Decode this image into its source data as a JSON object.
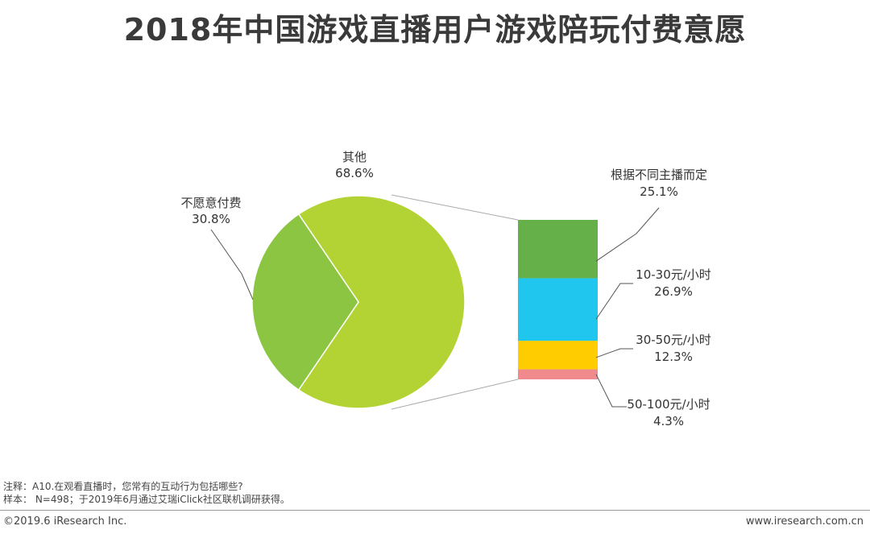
{
  "title": "2018年中国游戏直播用户游戏陪玩付费意愿",
  "chart_data": {
    "type": "pie",
    "pie": {
      "slices": [
        {
          "label": "其他",
          "value": 68.6,
          "value_label": "68.6%",
          "color": "#b3d334"
        },
        {
          "label": "不愿意付费",
          "value": 30.8,
          "value_label": "30.8%",
          "color": "#8bc541"
        }
      ]
    },
    "bar": {
      "type": "stacked-bar",
      "segments": [
        {
          "label": "根据不同主播而定",
          "value": 25.1,
          "value_label": "25.1%",
          "color": "#66b04a"
        },
        {
          "label": "10-30元/小时",
          "value": 26.9,
          "value_label": "26.9%",
          "color": "#20c6ee"
        },
        {
          "label": "30-50元/小时",
          "value": 12.3,
          "value_label": "12.3%",
          "color": "#ffcc00"
        },
        {
          "label": "50-100元/小时",
          "value": 4.3,
          "value_label": "4.3%",
          "color": "#f08a8c"
        }
      ]
    }
  },
  "notes": {
    "line1": "注释：A10.在观看直播时，您常有的互动行为包括哪些?",
    "line2": "样本：  N=498；于2019年6月通过艾瑞iClick社区联机调研获得。"
  },
  "footer": {
    "copyright": "©2019.6 iResearch Inc.",
    "website": "www.iresearch.com.cn"
  }
}
